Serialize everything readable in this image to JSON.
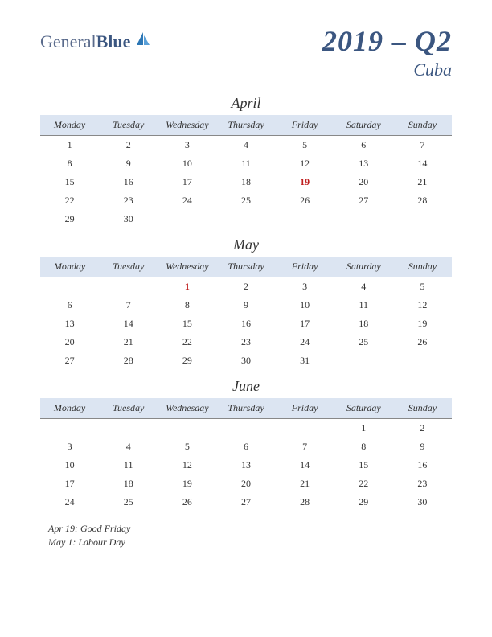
{
  "logo": {
    "general": "General",
    "blue": "Blue"
  },
  "header": {
    "quarter_title": "2019 – Q2",
    "country": "Cuba"
  },
  "dayHeaders": [
    "Monday",
    "Tuesday",
    "Wednesday",
    "Thursday",
    "Friday",
    "Saturday",
    "Sunday"
  ],
  "header_bg": "#dce5f2",
  "holiday_color": "#c02020",
  "months": [
    {
      "name": "April",
      "weeks": [
        [
          {
            "d": "1"
          },
          {
            "d": "2"
          },
          {
            "d": "3"
          },
          {
            "d": "4"
          },
          {
            "d": "5"
          },
          {
            "d": "6"
          },
          {
            "d": "7"
          }
        ],
        [
          {
            "d": "8"
          },
          {
            "d": "9"
          },
          {
            "d": "10"
          },
          {
            "d": "11"
          },
          {
            "d": "12"
          },
          {
            "d": "13"
          },
          {
            "d": "14"
          }
        ],
        [
          {
            "d": "15"
          },
          {
            "d": "16"
          },
          {
            "d": "17"
          },
          {
            "d": "18"
          },
          {
            "d": "19",
            "h": true
          },
          {
            "d": "20"
          },
          {
            "d": "21"
          }
        ],
        [
          {
            "d": "22"
          },
          {
            "d": "23"
          },
          {
            "d": "24"
          },
          {
            "d": "25"
          },
          {
            "d": "26"
          },
          {
            "d": "27"
          },
          {
            "d": "28"
          }
        ],
        [
          {
            "d": "29"
          },
          {
            "d": "30"
          },
          {
            "d": ""
          },
          {
            "d": ""
          },
          {
            "d": ""
          },
          {
            "d": ""
          },
          {
            "d": ""
          }
        ]
      ]
    },
    {
      "name": "May",
      "weeks": [
        [
          {
            "d": ""
          },
          {
            "d": ""
          },
          {
            "d": "1",
            "h": true
          },
          {
            "d": "2"
          },
          {
            "d": "3"
          },
          {
            "d": "4"
          },
          {
            "d": "5"
          }
        ],
        [
          {
            "d": "6"
          },
          {
            "d": "7"
          },
          {
            "d": "8"
          },
          {
            "d": "9"
          },
          {
            "d": "10"
          },
          {
            "d": "11"
          },
          {
            "d": "12"
          }
        ],
        [
          {
            "d": "13"
          },
          {
            "d": "14"
          },
          {
            "d": "15"
          },
          {
            "d": "16"
          },
          {
            "d": "17"
          },
          {
            "d": "18"
          },
          {
            "d": "19"
          }
        ],
        [
          {
            "d": "20"
          },
          {
            "d": "21"
          },
          {
            "d": "22"
          },
          {
            "d": "23"
          },
          {
            "d": "24"
          },
          {
            "d": "25"
          },
          {
            "d": "26"
          }
        ],
        [
          {
            "d": "27"
          },
          {
            "d": "28"
          },
          {
            "d": "29"
          },
          {
            "d": "30"
          },
          {
            "d": "31"
          },
          {
            "d": ""
          },
          {
            "d": ""
          }
        ]
      ]
    },
    {
      "name": "June",
      "weeks": [
        [
          {
            "d": ""
          },
          {
            "d": ""
          },
          {
            "d": ""
          },
          {
            "d": ""
          },
          {
            "d": ""
          },
          {
            "d": "1"
          },
          {
            "d": "2"
          }
        ],
        [
          {
            "d": "3"
          },
          {
            "d": "4"
          },
          {
            "d": "5"
          },
          {
            "d": "6"
          },
          {
            "d": "7"
          },
          {
            "d": "8"
          },
          {
            "d": "9"
          }
        ],
        [
          {
            "d": "10"
          },
          {
            "d": "11"
          },
          {
            "d": "12"
          },
          {
            "d": "13"
          },
          {
            "d": "14"
          },
          {
            "d": "15"
          },
          {
            "d": "16"
          }
        ],
        [
          {
            "d": "17"
          },
          {
            "d": "18"
          },
          {
            "d": "19"
          },
          {
            "d": "20"
          },
          {
            "d": "21"
          },
          {
            "d": "22"
          },
          {
            "d": "23"
          }
        ],
        [
          {
            "d": "24"
          },
          {
            "d": "25"
          },
          {
            "d": "26"
          },
          {
            "d": "27"
          },
          {
            "d": "28"
          },
          {
            "d": "29"
          },
          {
            "d": "30"
          }
        ]
      ]
    }
  ],
  "notes": [
    "Apr 19: Good Friday",
    "May 1: Labour Day"
  ]
}
